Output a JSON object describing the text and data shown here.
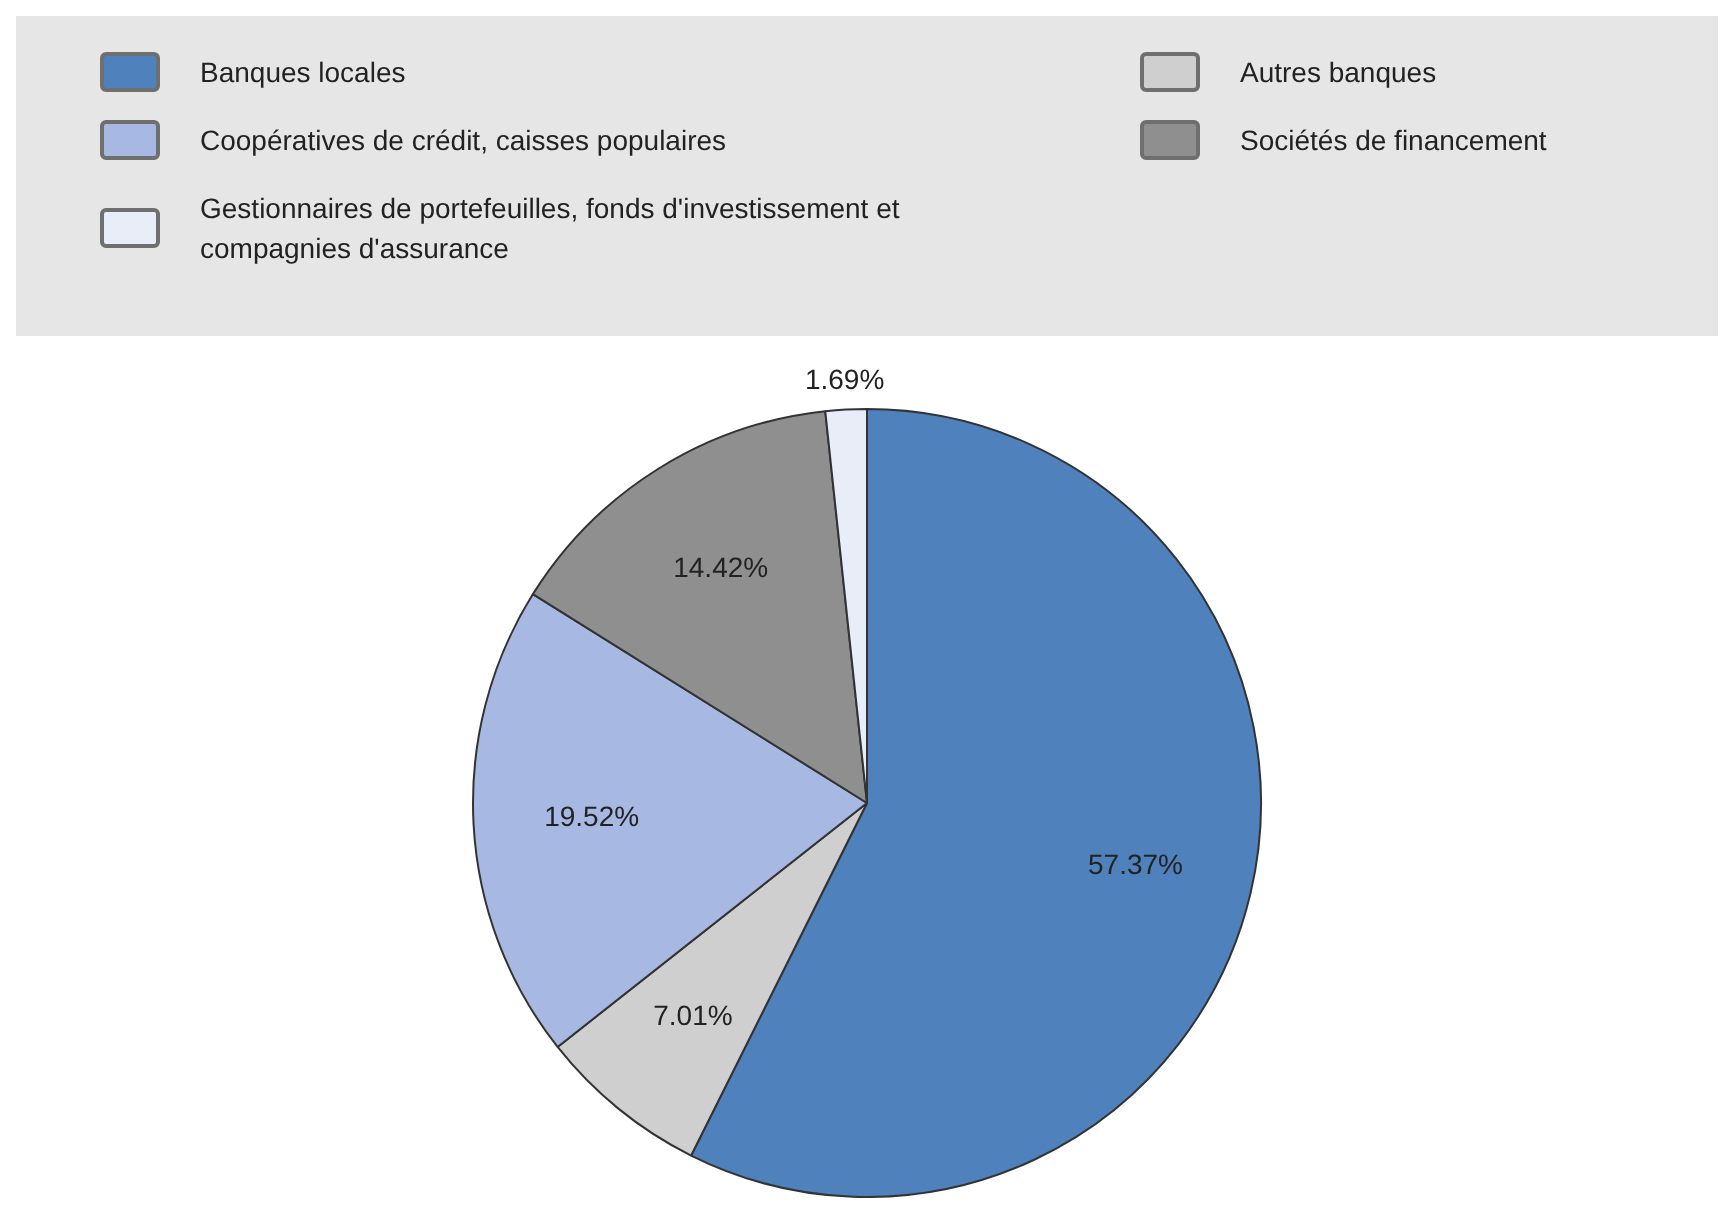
{
  "chart_data": {
    "type": "pie",
    "categories": [
      "Banques locales",
      "Autres banques",
      "Coopératives de crédit, caisses populaires",
      "Sociétés de financement",
      "Gestionnaires de portefeuilles, fonds d'investissement et compagnies d'assurance"
    ],
    "values": [
      57.37,
      7.01,
      19.52,
      14.42,
      1.69
    ],
    "colors": [
      "#4f81bd",
      "#cfcfcf",
      "#a7b9e3",
      "#8f8f8f",
      "#e8edf8"
    ],
    "value_labels": [
      "57.37%",
      "7.01%",
      "19.52%",
      "14.42%",
      "1.69%"
    ],
    "legend": "top"
  }
}
